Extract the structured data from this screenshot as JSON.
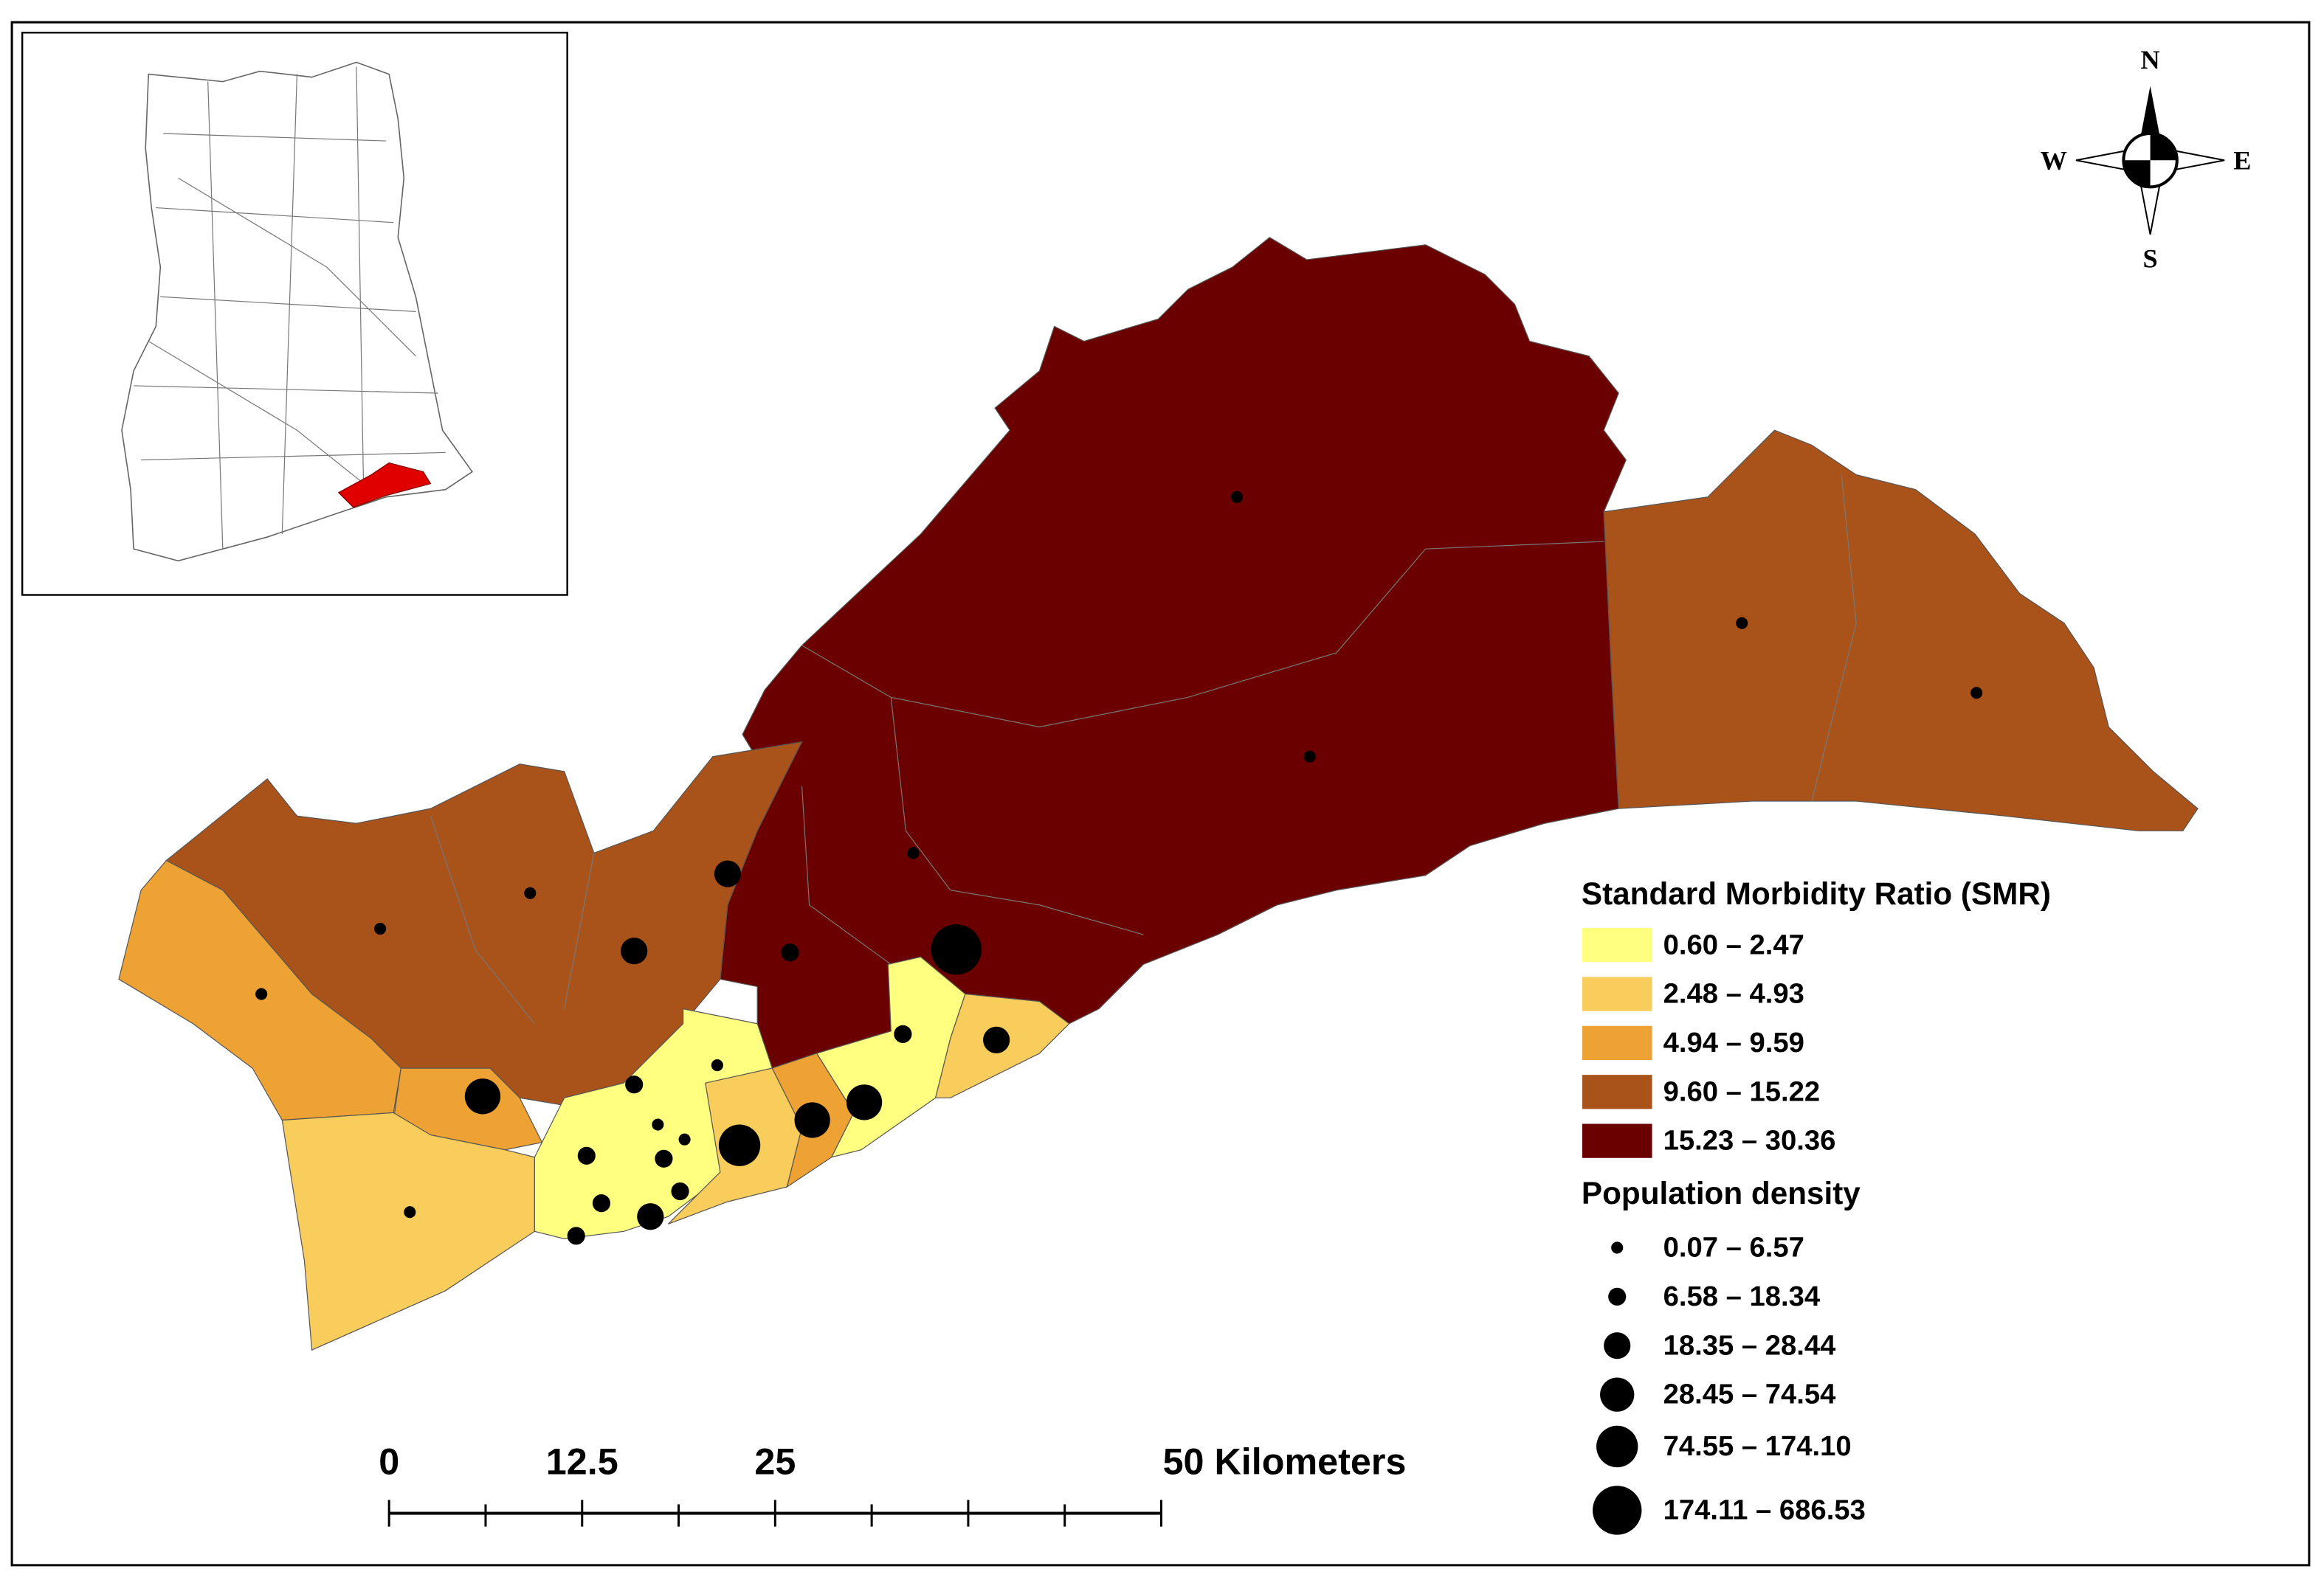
{
  "legend": {
    "smr_title": "Standard Morbidity Ratio (SMR)",
    "smr_classes": [
      {
        "label": "0.60 – 2.47",
        "color": "#ffff80"
      },
      {
        "label": "2.48 – 4.93",
        "color": "#f8cd5c"
      },
      {
        "label": "4.94 – 9.59",
        "color": "#eda233"
      },
      {
        "label": "9.60 – 15.22",
        "color": "#a9531a"
      },
      {
        "label": "15.23 – 30.36",
        "color": "#6b0000"
      }
    ],
    "density_title": "Population density",
    "density_classes": [
      "0.07 – 6.57",
      "6.58 – 18.34",
      "18.35 – 28.44",
      "28.45 – 74.54",
      "74.55 – 174.10",
      "174.11 – 686.53"
    ]
  },
  "scale_bar": {
    "labels": [
      "0",
      "12.5",
      "25",
      "50 Kilometers"
    ]
  },
  "compass": {
    "north": "N",
    "east": "E",
    "south": "S",
    "west": "W"
  }
}
